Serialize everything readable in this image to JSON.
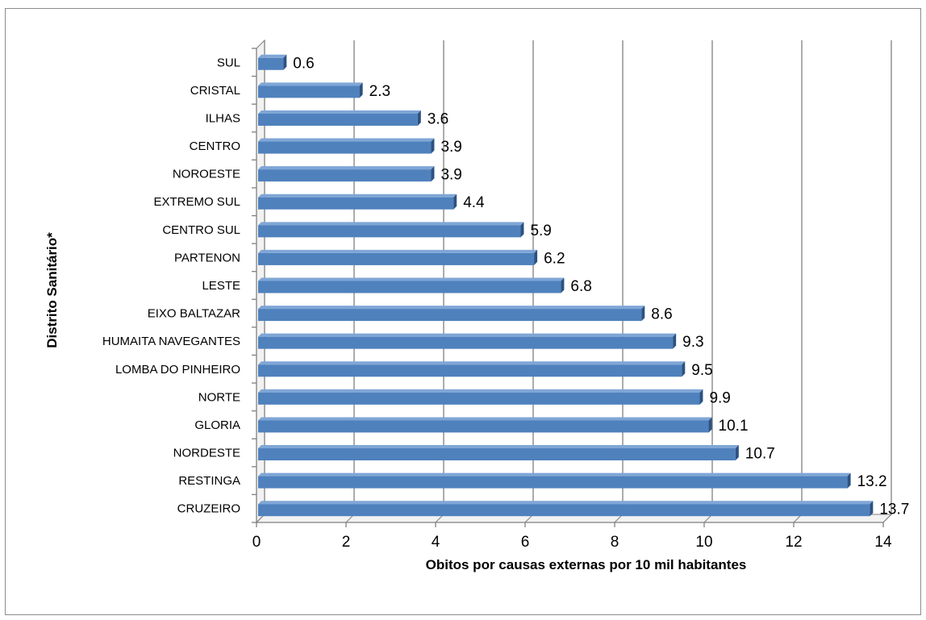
{
  "chart_data": {
    "type": "bar",
    "orientation": "horizontal",
    "style": "3d",
    "categories": [
      "SUL",
      "CRISTAL",
      "ILHAS",
      "CENTRO",
      "NOROESTE",
      "EXTREMO SUL",
      "CENTRO SUL",
      "PARTENON",
      "LESTE",
      "EIXO BALTAZAR",
      "HUMAITA NAVEGANTES",
      "LOMBA DO PINHEIRO",
      "NORTE",
      "GLORIA",
      "NORDESTE",
      "RESTINGA",
      "CRUZEIRO"
    ],
    "values": [
      0.6,
      2.3,
      3.6,
      3.9,
      3.9,
      4.4,
      5.9,
      6.2,
      6.8,
      8.6,
      9.3,
      9.5,
      9.9,
      10.1,
      10.7,
      13.2,
      13.7
    ],
    "value_labels": [
      "0.6",
      "2.3",
      "3.6",
      "3.9",
      "3.9",
      "4.4",
      "5.9",
      "6.2",
      "6.8",
      "8.6",
      "9.3",
      "9.5",
      "9.9",
      "10.1",
      "10.7",
      "13.2",
      "13.7"
    ],
    "xlabel": "Obitos por causas externas por 10 mil habitantes",
    "ylabel": "Distrito Sanitário*",
    "xlim": [
      0,
      14
    ],
    "xticks": [
      0,
      2,
      4,
      6,
      8,
      10,
      12,
      14
    ],
    "xtick_labels": [
      "0",
      "2",
      "4",
      "6",
      "8",
      "10",
      "12",
      "14"
    ],
    "grid": "vertical",
    "legend": "none",
    "colors": {
      "bar": "#4f81bd",
      "bar_dark": "#2c5282",
      "bar_light": "#7fa6d6",
      "grid": "#7f7f7f",
      "wall": "#ffffff",
      "axis": "#7f7f7f"
    }
  }
}
